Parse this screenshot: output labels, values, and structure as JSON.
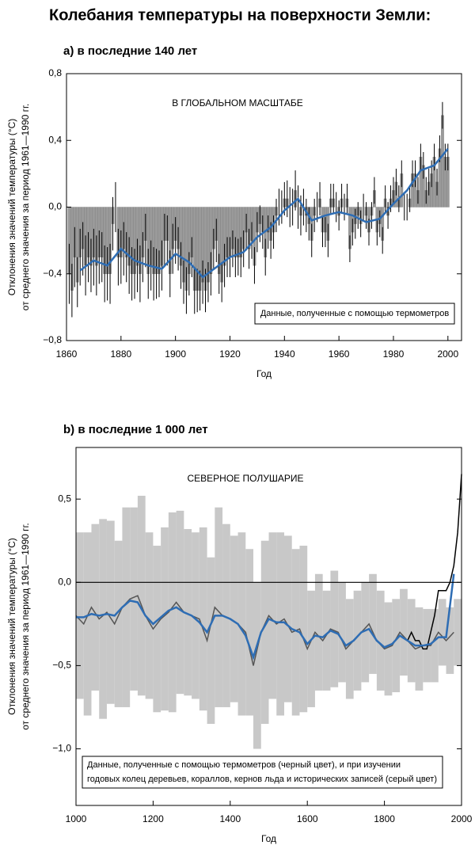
{
  "title": "Колебания температуры на поверхности Земли:",
  "chart_data": [
    {
      "type": "bar",
      "subtitle": "a) в последние 140 лет",
      "annotation": "В ГЛОБАЛЬНОМ МАСШТАБЕ",
      "legend": "Данные, полученные с помощью термометров",
      "xlabel": "Год",
      "ylabel": [
        "Отклонения значений температуры (°C)",
        "от среднего значения за период 1961—1990 гг."
      ],
      "x": [
        1861,
        1862,
        1863,
        1864,
        1865,
        1866,
        1867,
        1868,
        1869,
        1870,
        1871,
        1872,
        1873,
        1874,
        1875,
        1876,
        1877,
        1878,
        1879,
        1880,
        1881,
        1882,
        1883,
        1884,
        1885,
        1886,
        1887,
        1888,
        1889,
        1890,
        1891,
        1892,
        1893,
        1894,
        1895,
        1896,
        1897,
        1898,
        1899,
        1900,
        1901,
        1902,
        1903,
        1904,
        1905,
        1906,
        1907,
        1908,
        1909,
        1910,
        1911,
        1912,
        1913,
        1914,
        1915,
        1916,
        1917,
        1918,
        1919,
        1920,
        1921,
        1922,
        1923,
        1924,
        1925,
        1926,
        1927,
        1928,
        1929,
        1930,
        1931,
        1932,
        1933,
        1934,
        1935,
        1936,
        1937,
        1938,
        1939,
        1940,
        1941,
        1942,
        1943,
        1944,
        1945,
        1946,
        1947,
        1948,
        1949,
        1950,
        1951,
        1952,
        1953,
        1954,
        1955,
        1956,
        1957,
        1958,
        1959,
        1960,
        1961,
        1962,
        1963,
        1964,
        1965,
        1966,
        1967,
        1968,
        1969,
        1970,
        1971,
        1972,
        1973,
        1974,
        1975,
        1976,
        1977,
        1978,
        1979,
        1980,
        1981,
        1982,
        1983,
        1984,
        1985,
        1986,
        1987,
        1988,
        1989,
        1990,
        1991,
        1992,
        1993,
        1994,
        1995,
        1996,
        1997,
        1998,
        1999,
        2000
      ],
      "values": [
        -0.4,
        -0.5,
        -0.3,
        -0.45,
        -0.3,
        -0.25,
        -0.35,
        -0.3,
        -0.35,
        -0.3,
        -0.35,
        -0.3,
        -0.3,
        -0.4,
        -0.4,
        -0.4,
        -0.1,
        0.0,
        -0.3,
        -0.3,
        -0.25,
        -0.3,
        -0.35,
        -0.4,
        -0.4,
        -0.35,
        -0.4,
        -0.3,
        -0.2,
        -0.4,
        -0.35,
        -0.4,
        -0.4,
        -0.4,
        -0.35,
        -0.2,
        -0.2,
        -0.4,
        -0.25,
        -0.2,
        -0.25,
        -0.35,
        -0.45,
        -0.5,
        -0.4,
        -0.3,
        -0.5,
        -0.5,
        -0.5,
        -0.45,
        -0.5,
        -0.45,
        -0.4,
        -0.25,
        -0.2,
        -0.4,
        -0.45,
        -0.35,
        -0.3,
        -0.3,
        -0.25,
        -0.3,
        -0.3,
        -0.3,
        -0.25,
        -0.15,
        -0.25,
        -0.2,
        -0.35,
        -0.15,
        -0.1,
        -0.15,
        -0.3,
        -0.15,
        -0.2,
        -0.15,
        -0.05,
        0.0,
        0.0,
        0.05,
        0.05,
        0.0,
        0.0,
        0.1,
        0.0,
        -0.05,
        0.0,
        -0.05,
        -0.1,
        -0.2,
        -0.05,
        0.0,
        0.05,
        -0.15,
        -0.15,
        -0.2,
        0.05,
        0.05,
        0.0,
        -0.05,
        0.05,
        0.0,
        0.05,
        -0.25,
        -0.15,
        -0.1,
        -0.05,
        -0.1,
        0.0,
        -0.05,
        -0.15,
        -0.05,
        0.1,
        -0.15,
        -0.1,
        -0.2,
        0.05,
        -0.05,
        0.05,
        0.1,
        0.15,
        0.05,
        0.2,
        0.0,
        0.0,
        0.05,
        0.2,
        0.2,
        0.1,
        0.3,
        0.25,
        0.1,
        0.15,
        0.2,
        0.3,
        0.15,
        0.35,
        0.55,
        0.3,
        0.3
      ],
      "errors": [
        0.18,
        0.16,
        0.18,
        0.15,
        0.17,
        0.16,
        0.18,
        0.15,
        0.16,
        0.17,
        0.18,
        0.16,
        0.15,
        0.17,
        0.16,
        0.18,
        0.16,
        0.15,
        0.17,
        0.16,
        0.16,
        0.15,
        0.17,
        0.16,
        0.15,
        0.16,
        0.17,
        0.15,
        0.16,
        0.15,
        0.15,
        0.16,
        0.15,
        0.14,
        0.15,
        0.16,
        0.15,
        0.14,
        0.15,
        0.14,
        0.13,
        0.14,
        0.13,
        0.14,
        0.13,
        0.12,
        0.14,
        0.13,
        0.12,
        0.13,
        0.13,
        0.12,
        0.13,
        0.12,
        0.13,
        0.12,
        0.12,
        0.13,
        0.12,
        0.12,
        0.11,
        0.12,
        0.11,
        0.12,
        0.11,
        0.11,
        0.12,
        0.11,
        0.11,
        0.12,
        0.11,
        0.1,
        0.11,
        0.1,
        0.11,
        0.1,
        0.1,
        0.11,
        0.1,
        0.1,
        0.11,
        0.12,
        0.11,
        0.12,
        0.13,
        0.12,
        0.11,
        0.1,
        0.1,
        0.1,
        0.1,
        0.09,
        0.1,
        0.09,
        0.09,
        0.1,
        0.09,
        0.09,
        0.09,
        0.09,
        0.09,
        0.08,
        0.09,
        0.08,
        0.08,
        0.09,
        0.08,
        0.08,
        0.08,
        0.08,
        0.08,
        0.08,
        0.08,
        0.08,
        0.08,
        0.08,
        0.08,
        0.08,
        0.08,
        0.08,
        0.08,
        0.08,
        0.08,
        0.08,
        0.08,
        0.08,
        0.08,
        0.08,
        0.08,
        0.08,
        0.08,
        0.08,
        0.08,
        0.08,
        0.08,
        0.08,
        0.08,
        0.08,
        0.08,
        0.08
      ],
      "color": "#9a9a9a",
      "error_color": "#000000",
      "smooth": {
        "x": [
          1865,
          1870,
          1875,
          1880,
          1885,
          1890,
          1895,
          1900,
          1905,
          1910,
          1915,
          1920,
          1925,
          1930,
          1935,
          1940,
          1945,
          1950,
          1955,
          1960,
          1965,
          1970,
          1975,
          1980,
          1985,
          1990,
          1995,
          2000
        ],
        "values": [
          -0.38,
          -0.32,
          -0.35,
          -0.25,
          -0.32,
          -0.35,
          -0.37,
          -0.28,
          -0.33,
          -0.42,
          -0.36,
          -0.3,
          -0.27,
          -0.18,
          -0.12,
          -0.02,
          0.05,
          -0.08,
          -0.05,
          -0.03,
          -0.05,
          -0.09,
          -0.07,
          0.02,
          0.1,
          0.22,
          0.25,
          0.35
        ],
        "color": "#2e6db4"
      },
      "xlim": [
        1860,
        2005
      ],
      "xticks": [
        1860,
        1880,
        1900,
        1920,
        1940,
        1960,
        1980,
        2000
      ],
      "ylim": [
        -0.8,
        0.8
      ],
      "yticks": [
        {
          "value": -0.8,
          "label": "−0,8"
        },
        {
          "value": -0.4,
          "label": "−0,4"
        },
        {
          "value": 0,
          "label": "0,0"
        },
        {
          "value": 0.4,
          "label": "0,4"
        },
        {
          "value": 0.8,
          "label": "0,8"
        }
      ]
    },
    {
      "type": "line",
      "subtitle": "b) в последние 1 000 лет",
      "annotation": "СЕВЕРНОЕ ПОЛУШАРИЕ",
      "legend_lines": [
        "Данные, полученные с помощью термометров (черный цвет), и при изучении",
        "годовых колец деревьев, кораллов, кернов льда и исторических записей (серый цвет)"
      ],
      "xlabel": "Год",
      "ylabel": [
        "Отклонения значений температуры (°C)",
        "от среднего значения за период 1961—1990 гг."
      ],
      "proxy": {
        "x": [
          1000,
          1020,
          1040,
          1060,
          1080,
          1100,
          1120,
          1140,
          1160,
          1180,
          1200,
          1220,
          1240,
          1260,
          1280,
          1300,
          1320,
          1340,
          1360,
          1380,
          1400,
          1420,
          1440,
          1460,
          1480,
          1500,
          1520,
          1540,
          1560,
          1580,
          1600,
          1620,
          1640,
          1660,
          1680,
          1700,
          1720,
          1740,
          1760,
          1780,
          1800,
          1820,
          1840,
          1860,
          1880,
          1900,
          1920,
          1940,
          1960,
          1980
        ],
        "values": [
          -0.2,
          -0.25,
          -0.15,
          -0.22,
          -0.18,
          -0.25,
          -0.15,
          -0.1,
          -0.08,
          -0.2,
          -0.28,
          -0.22,
          -0.18,
          -0.12,
          -0.18,
          -0.2,
          -0.22,
          -0.35,
          -0.15,
          -0.2,
          -0.22,
          -0.25,
          -0.3,
          -0.5,
          -0.3,
          -0.2,
          -0.25,
          -0.22,
          -0.3,
          -0.28,
          -0.4,
          -0.3,
          -0.35,
          -0.28,
          -0.3,
          -0.4,
          -0.35,
          -0.3,
          -0.25,
          -0.35,
          -0.4,
          -0.38,
          -0.3,
          -0.35,
          -0.4,
          -0.38,
          -0.38,
          -0.3,
          -0.35,
          -0.3
        ],
        "uncertainty": [
          0.5,
          0.55,
          0.5,
          0.6,
          0.55,
          0.5,
          0.6,
          0.55,
          0.6,
          0.5,
          0.5,
          0.55,
          0.6,
          0.55,
          0.5,
          0.5,
          0.55,
          0.5,
          0.6,
          0.55,
          0.5,
          0.55,
          0.5,
          0.5,
          0.55,
          0.5,
          0.55,
          0.5,
          0.5,
          0.5,
          0.35,
          0.35,
          0.3,
          0.35,
          0.3,
          0.3,
          0.3,
          0.3,
          0.3,
          0.3,
          0.28,
          0.28,
          0.26,
          0.25,
          0.25,
          0.22,
          0.22,
          0.2,
          0.2,
          0.2
        ],
        "color": "#555555",
        "band_color": "#c8c8c8"
      },
      "thermometer": {
        "x": [
          1860,
          1870,
          1880,
          1890,
          1900,
          1910,
          1920,
          1930,
          1940,
          1950,
          1960,
          1970,
          1980,
          1990,
          2000
        ],
        "values": [
          -0.35,
          -0.3,
          -0.35,
          -0.35,
          -0.4,
          -0.4,
          -0.3,
          -0.2,
          -0.05,
          -0.05,
          -0.05,
          0.0,
          0.1,
          0.3,
          0.65
        ],
        "color": "#000000"
      },
      "smooth": {
        "x": [
          1000,
          1020,
          1040,
          1060,
          1080,
          1100,
          1120,
          1140,
          1160,
          1180,
          1200,
          1220,
          1240,
          1260,
          1280,
          1300,
          1320,
          1340,
          1360,
          1380,
          1400,
          1420,
          1440,
          1460,
          1480,
          1500,
          1520,
          1540,
          1560,
          1580,
          1600,
          1620,
          1640,
          1660,
          1680,
          1700,
          1720,
          1740,
          1760,
          1780,
          1800,
          1820,
          1840,
          1860,
          1880,
          1900,
          1920,
          1940,
          1960,
          1980
        ],
        "values": [
          -0.21,
          -0.21,
          -0.19,
          -0.2,
          -0.19,
          -0.2,
          -0.15,
          -0.11,
          -0.12,
          -0.2,
          -0.25,
          -0.21,
          -0.17,
          -0.15,
          -0.18,
          -0.2,
          -0.24,
          -0.3,
          -0.2,
          -0.2,
          -0.22,
          -0.25,
          -0.32,
          -0.45,
          -0.3,
          -0.22,
          -0.24,
          -0.24,
          -0.28,
          -0.3,
          -0.37,
          -0.32,
          -0.33,
          -0.29,
          -0.31,
          -0.38,
          -0.35,
          -0.3,
          -0.28,
          -0.35,
          -0.39,
          -0.37,
          -0.32,
          -0.35,
          -0.38,
          -0.38,
          -0.37,
          -0.33,
          -0.33,
          0.05
        ],
        "color": "#2e6db4"
      },
      "xlim": [
        1000,
        2000
      ],
      "xticks": [
        1000,
        1200,
        1400,
        1600,
        1800,
        2000
      ],
      "ylim": [
        -1.34,
        0.81
      ],
      "yticks": [
        {
          "value": -1,
          "label": "−1,0"
        },
        {
          "value": -0.5,
          "label": "−0,5"
        },
        {
          "value": 0,
          "label": "0,0"
        },
        {
          "value": 0.5,
          "label": "0,5"
        }
      ]
    }
  ]
}
